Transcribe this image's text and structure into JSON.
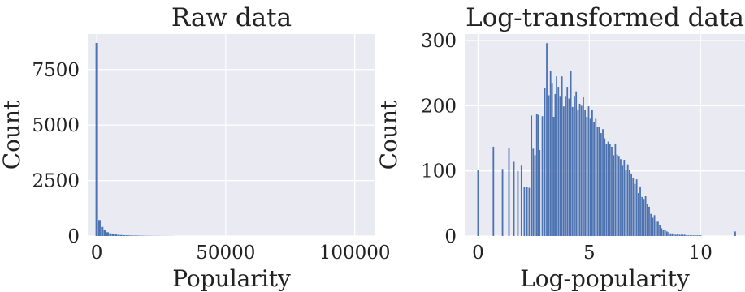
{
  "chart_data": [
    {
      "type": "bar",
      "title": "Raw data",
      "xlabel": "Popularity",
      "ylabel": "Count",
      "xlim": [
        -3500,
        108000
      ],
      "ylim": [
        0,
        9100
      ],
      "xticks": [
        0,
        50000,
        100000
      ],
      "xtick_labels": [
        "0",
        "50000",
        "100000"
      ],
      "yticks": [
        0,
        2500,
        5000,
        7500
      ],
      "ytick_labels": [
        "0",
        "2500",
        "5000",
        "7500"
      ],
      "grid": true,
      "background": "#eaeaf2",
      "bar_color": "#4c72b0",
      "x": [
        0,
        1054,
        2108,
        3162,
        4216,
        5270,
        6324,
        7378,
        8432,
        9486,
        10540,
        11594,
        12648,
        13702,
        14756,
        15810,
        16864,
        17918,
        18972,
        20026,
        21080,
        22134,
        23188,
        24242,
        25296,
        26350,
        27404,
        28458,
        29512
      ],
      "values": [
        8700,
        720,
        410,
        260,
        170,
        120,
        90,
        70,
        55,
        45,
        38,
        32,
        28,
        24,
        20,
        18,
        16,
        14,
        12,
        10,
        9,
        8,
        7,
        6,
        5,
        5,
        4,
        4,
        3
      ]
    },
    {
      "type": "bar",
      "title": "Log-transformed data",
      "xlabel": "Log-popularity",
      "ylabel": "Count",
      "xlim": [
        -0.6,
        12.0
      ],
      "ylim": [
        0,
        310
      ],
      "xticks": [
        0,
        5,
        10
      ],
      "xtick_labels": [
        "0",
        "5",
        "10"
      ],
      "yticks": [
        0,
        100,
        200,
        300
      ],
      "ytick_labels": [
        "0",
        "100",
        "200",
        "300"
      ],
      "grid": true,
      "background": "#eaeaf2",
      "bar_color": "#4c72b0",
      "x": [
        0.0,
        0.69,
        1.1,
        1.39,
        1.61,
        1.79,
        1.95,
        2.08,
        2.2,
        2.3,
        2.4,
        2.48,
        2.56,
        2.64,
        2.71,
        2.77,
        2.89,
        3.0,
        3.09,
        3.18,
        3.26,
        3.33,
        3.4,
        3.47,
        3.53,
        3.61,
        3.69,
        3.77,
        3.85,
        3.93,
        4.01,
        4.09,
        4.17,
        4.25,
        4.33,
        4.41,
        4.49,
        4.57,
        4.65,
        4.73,
        4.81,
        4.89,
        4.97,
        5.05,
        5.13,
        5.21,
        5.29,
        5.37,
        5.45,
        5.53,
        5.61,
        5.69,
        5.77,
        5.85,
        5.93,
        6.01,
        6.09,
        6.17,
        6.25,
        6.33,
        6.41,
        6.49,
        6.57,
        6.65,
        6.73,
        6.81,
        6.89,
        6.97,
        7.05,
        7.13,
        7.21,
        7.29,
        7.37,
        7.45,
        7.53,
        7.61,
        7.69,
        7.77,
        7.85,
        7.93,
        8.01,
        8.09,
        8.17,
        8.25,
        8.33,
        8.41,
        8.49,
        8.57,
        8.65,
        8.73,
        8.81,
        8.89,
        8.97,
        9.05,
        9.13,
        9.21,
        9.29,
        9.37,
        9.45,
        9.53,
        9.61,
        9.69,
        9.77,
        9.85,
        9.93,
        10.01,
        10.09,
        10.17,
        10.25,
        10.33,
        10.41,
        10.49,
        10.57,
        10.65,
        10.73,
        10.81,
        11.56
      ],
      "values": [
        102,
        137,
        103,
        135,
        114,
        100,
        108,
        75,
        75,
        74,
        185,
        134,
        124,
        187,
        186,
        132,
        184,
        227,
        296,
        216,
        253,
        235,
        183,
        218,
        245,
        229,
        215,
        245,
        199,
        215,
        229,
        211,
        254,
        198,
        215,
        222,
        193,
        203,
        200,
        213,
        193,
        183,
        199,
        180,
        193,
        175,
        180,
        168,
        167,
        158,
        164,
        150,
        141,
        145,
        141,
        137,
        124,
        142,
        125,
        123,
        118,
        108,
        117,
        102,
        110,
        101,
        96,
        89,
        80,
        87,
        66,
        76,
        60,
        57,
        61,
        49,
        45,
        34,
        28,
        32,
        22,
        22,
        17,
        12,
        9,
        10,
        7,
        6,
        4,
        4,
        3,
        2,
        3,
        2,
        2,
        2,
        2,
        1,
        1,
        1,
        1,
        1,
        1,
        1,
        1,
        1,
        0,
        0,
        0,
        0,
        0,
        0,
        0,
        0,
        0,
        0,
        7
      ]
    }
  ]
}
